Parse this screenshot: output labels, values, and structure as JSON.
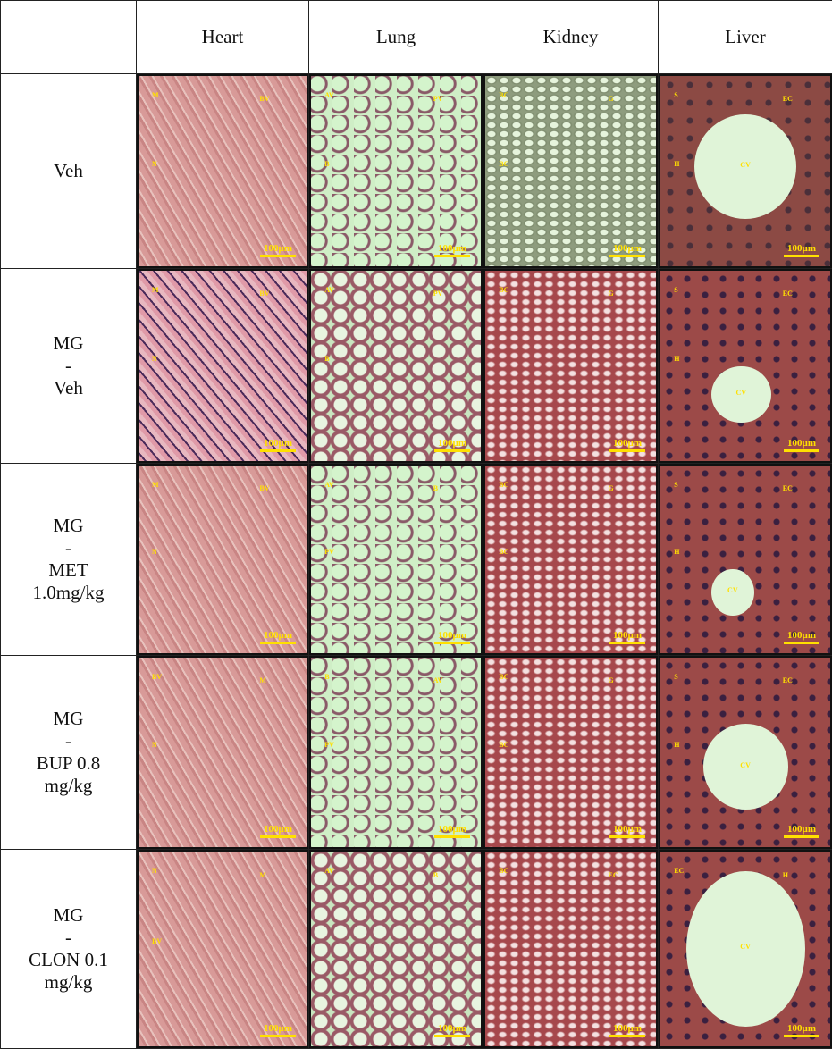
{
  "columns": [
    "Heart",
    "Lung",
    "Kidney",
    "Liver"
  ],
  "scale_label": "100µm",
  "rows": [
    {
      "label": [
        "Veh"
      ],
      "cells": [
        {
          "style": "heart",
          "labels": [
            "M",
            "BV",
            "N"
          ]
        },
        {
          "style": "lung",
          "labels": [
            "AV",
            "PV",
            "B"
          ]
        },
        {
          "style": "kid1",
          "labels": [
            "BC",
            "G",
            "BC"
          ]
        },
        {
          "style": "liver1",
          "labels": [
            "CV",
            "S",
            "EC",
            "H"
          ],
          "cv": true
        }
      ]
    },
    {
      "label": [
        "MG",
        "-",
        "Veh"
      ],
      "cells": [
        {
          "style": "heart2",
          "labels": [
            "M",
            "BV",
            "N"
          ]
        },
        {
          "style": "lung2",
          "labels": [
            "AV",
            "PV",
            "B"
          ]
        },
        {
          "style": "kid",
          "labels": [
            "BC",
            "G"
          ]
        },
        {
          "style": "liver",
          "labels": [
            "CV",
            "S",
            "EC",
            "H"
          ],
          "cv": true
        }
      ]
    },
    {
      "label": [
        "MG",
        "-",
        "MET",
        "1.0mg/kg"
      ],
      "cells": [
        {
          "style": "heart",
          "labels": [
            "M",
            "BV",
            "N"
          ]
        },
        {
          "style": "lung",
          "labels": [
            "AV",
            "B",
            "PV"
          ]
        },
        {
          "style": "kid",
          "labels": [
            "BC",
            "G",
            "BC"
          ]
        },
        {
          "style": "liver",
          "labels": [
            "CV",
            "S",
            "EC",
            "H"
          ],
          "cv": true
        }
      ]
    },
    {
      "label": [
        "MG",
        "-",
        "BUP 0.8",
        "mg/kg"
      ],
      "cells": [
        {
          "style": "heart",
          "labels": [
            "BV",
            "M",
            "N"
          ]
        },
        {
          "style": "lung",
          "labels": [
            "B",
            "AV",
            "PV"
          ]
        },
        {
          "style": "kid",
          "labels": [
            "BC",
            "G",
            "BC"
          ]
        },
        {
          "style": "liver",
          "labels": [
            "CV",
            "S",
            "EC",
            "H"
          ],
          "cv": true
        }
      ]
    },
    {
      "label": [
        "MG",
        "-",
        "CLON 0.1",
        "mg/kg"
      ],
      "cells": [
        {
          "style": "heart",
          "labels": [
            "N",
            "M",
            "BV"
          ]
        },
        {
          "style": "lung2",
          "labels": [
            "AV",
            "B"
          ]
        },
        {
          "style": "kid",
          "labels": [
            "BC",
            "EC"
          ]
        },
        {
          "style": "liver",
          "labels": [
            "CV",
            "EC",
            "H"
          ],
          "cv": true
        }
      ]
    }
  ]
}
